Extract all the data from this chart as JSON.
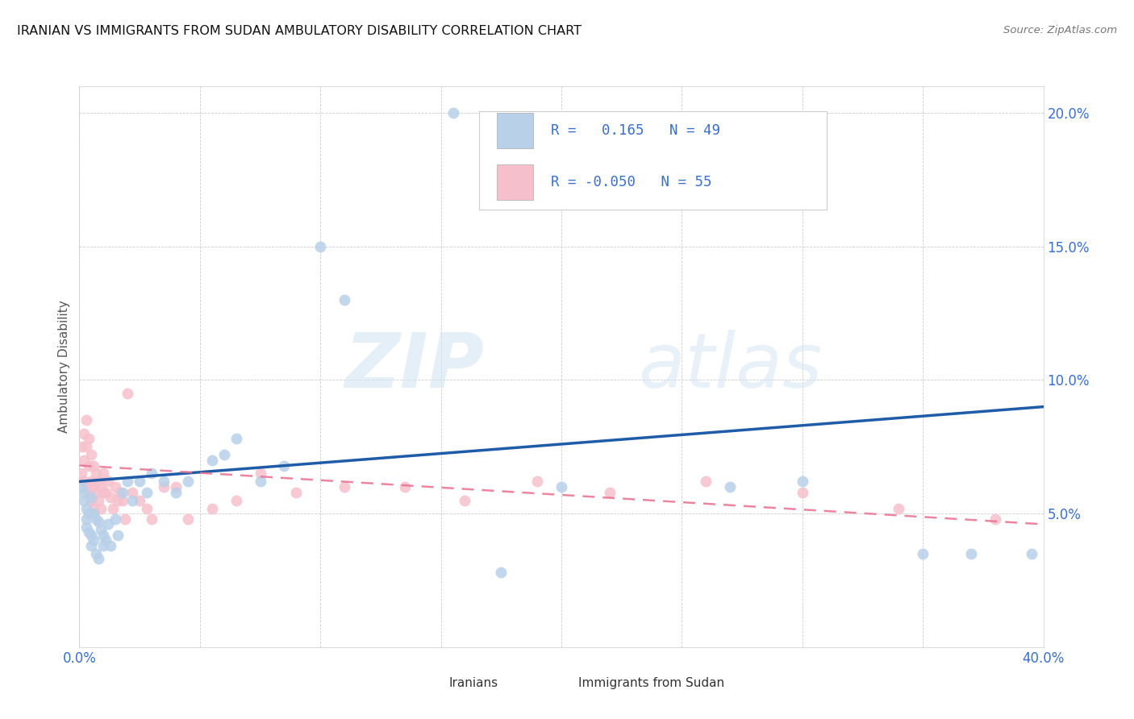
{
  "title": "IRANIAN VS IMMIGRANTS FROM SUDAN AMBULATORY DISABILITY CORRELATION CHART",
  "source": "Source: ZipAtlas.com",
  "ylabel": "Ambulatory Disability",
  "xlim": [
    0.0,
    0.4
  ],
  "ylim": [
    0.0,
    0.21
  ],
  "x_ticks": [
    0.0,
    0.05,
    0.1,
    0.15,
    0.2,
    0.25,
    0.3,
    0.35,
    0.4
  ],
  "y_ticks": [
    0.0,
    0.05,
    0.1,
    0.15,
    0.2
  ],
  "iranians_R": 0.165,
  "iranians_N": 49,
  "sudan_R": -0.05,
  "sudan_N": 55,
  "iranian_color": "#b8d0e8",
  "sudan_color": "#f5c0cc",
  "iranian_line_color": "#1f5ca8",
  "sudan_line_color": "#e87090",
  "background_color": "#ffffff",
  "watermark_zip": "ZIP",
  "watermark_atlas": "atlas",
  "iranians_x": [
    0.001,
    0.002,
    0.002,
    0.003,
    0.003,
    0.003,
    0.004,
    0.004,
    0.005,
    0.005,
    0.005,
    0.006,
    0.006,
    0.007,
    0.007,
    0.008,
    0.008,
    0.009,
    0.01,
    0.01,
    0.011,
    0.012,
    0.013,
    0.015,
    0.016,
    0.018,
    0.02,
    0.022,
    0.025,
    0.028,
    0.03,
    0.035,
    0.04,
    0.045,
    0.055,
    0.06,
    0.065,
    0.075,
    0.085,
    0.1,
    0.11,
    0.155,
    0.175,
    0.2,
    0.27,
    0.3,
    0.35,
    0.37,
    0.395
  ],
  "iranians_y": [
    0.06,
    0.058,
    0.055,
    0.052,
    0.048,
    0.045,
    0.05,
    0.043,
    0.056,
    0.042,
    0.038,
    0.05,
    0.04,
    0.048,
    0.035,
    0.047,
    0.033,
    0.044,
    0.042,
    0.038,
    0.04,
    0.046,
    0.038,
    0.048,
    0.042,
    0.058,
    0.062,
    0.055,
    0.062,
    0.058,
    0.065,
    0.062,
    0.058,
    0.062,
    0.07,
    0.072,
    0.078,
    0.062,
    0.068,
    0.15,
    0.13,
    0.2,
    0.028,
    0.06,
    0.06,
    0.062,
    0.035,
    0.035,
    0.035
  ],
  "sudan_x": [
    0.001,
    0.001,
    0.002,
    0.002,
    0.002,
    0.003,
    0.003,
    0.003,
    0.004,
    0.004,
    0.004,
    0.005,
    0.005,
    0.005,
    0.006,
    0.006,
    0.006,
    0.007,
    0.007,
    0.008,
    0.008,
    0.009,
    0.009,
    0.01,
    0.01,
    0.011,
    0.012,
    0.013,
    0.014,
    0.015,
    0.016,
    0.017,
    0.018,
    0.019,
    0.02,
    0.022,
    0.025,
    0.028,
    0.03,
    0.035,
    0.04,
    0.045,
    0.055,
    0.065,
    0.075,
    0.09,
    0.11,
    0.135,
    0.16,
    0.19,
    0.22,
    0.26,
    0.3,
    0.34,
    0.38
  ],
  "sudan_y": [
    0.075,
    0.065,
    0.08,
    0.07,
    0.062,
    0.085,
    0.075,
    0.06,
    0.078,
    0.068,
    0.058,
    0.072,
    0.062,
    0.055,
    0.068,
    0.06,
    0.052,
    0.065,
    0.058,
    0.062,
    0.055,
    0.06,
    0.052,
    0.065,
    0.058,
    0.058,
    0.062,
    0.056,
    0.052,
    0.06,
    0.055,
    0.058,
    0.055,
    0.048,
    0.095,
    0.058,
    0.055,
    0.052,
    0.048,
    0.06,
    0.06,
    0.048,
    0.052,
    0.055,
    0.065,
    0.058,
    0.06,
    0.06,
    0.055,
    0.062,
    0.058,
    0.062,
    0.058,
    0.052,
    0.048
  ],
  "iranian_trendline_start_y": 0.062,
  "iranian_trendline_end_y": 0.09,
  "sudan_trendline_start_y": 0.068,
  "sudan_trendline_end_y": 0.046,
  "legend_r1_text": "R =   0.165   N = 49",
  "legend_r2_text": "R = -0.050   N = 55",
  "bottom_legend_iranians": "Iranians",
  "bottom_legend_sudan": "Immigrants from Sudan"
}
